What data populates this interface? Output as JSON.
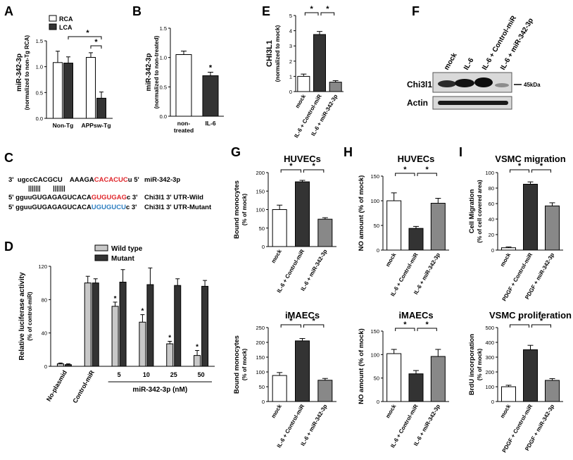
{
  "panels": {
    "A": {
      "letter": "A",
      "chart_type": "bar",
      "ylabel": "miR-342-3p",
      "ylabel_sub": "(normalized to non-Tg RCA)",
      "ylim": [
        0,
        1.5
      ],
      "yticks": [
        "0.0",
        "0.5",
        "1.0",
        "1.5"
      ],
      "ytick_values": [
        0,
        0.5,
        1.0,
        1.5
      ],
      "categories": [
        "Non-Tg",
        "APPsw-Tg"
      ],
      "series": [
        {
          "name": "RCA",
          "color": "#ffffff",
          "values": [
            1.08,
            1.18
          ],
          "errors": [
            0.22,
            0.09
          ]
        },
        {
          "name": "LCA",
          "color": "#333333",
          "values": [
            1.07,
            0.39
          ],
          "errors": [
            0.12,
            0.12
          ]
        }
      ],
      "sig": [
        "*",
        "*"
      ]
    },
    "B": {
      "letter": "B",
      "chart_type": "bar",
      "ylabel": "miR-342-3p",
      "ylabel_sub": "(normalized to non-treated)",
      "ylim": [
        0,
        1.5
      ],
      "yticks": [
        "0.0",
        "0.5",
        "1.0",
        "1.5"
      ],
      "ytick_values": [
        0,
        0.5,
        1.0,
        1.5
      ],
      "categories": [
        "non-treated",
        "IL-6"
      ],
      "category_lines": [
        [
          "non-",
          "treated"
        ],
        [
          "IL-6"
        ]
      ],
      "values": [
        1.05,
        0.69
      ],
      "errors": [
        0.06,
        0.06
      ],
      "colors": [
        "#ffffff",
        "#333333"
      ],
      "sig": [
        "*"
      ]
    },
    "E": {
      "letter": "E",
      "chart_type": "bar",
      "ylabel": "CHI3L1",
      "ylabel_sub": "(normalized to mock)",
      "ylim": [
        0,
        5
      ],
      "yticks": [
        "0",
        "1",
        "2",
        "3",
        "4",
        "5"
      ],
      "ytick_values": [
        0,
        1,
        2,
        3,
        4,
        5
      ],
      "categories": [
        "mock",
        "IL-6 + Control-miR",
        "IL-6 + miR-342-3p"
      ],
      "values": [
        1.0,
        3.75,
        0.62
      ],
      "errors": [
        0.15,
        0.2,
        0.1
      ],
      "colors": [
        "#ffffff",
        "#333333",
        "#888888"
      ],
      "sig": [
        "*",
        "*"
      ]
    },
    "F": {
      "letter": "F",
      "lane_labels": [
        "mock",
        "IL-6",
        "IL-6 + Control-miR",
        "IL-6 + miR-342-3p"
      ],
      "row_labels": [
        "Chi3l1",
        "Actin"
      ],
      "marker": "45kDa"
    },
    "C": {
      "letter": "C",
      "mirna_prefix": "3'  ugccCACGCU    AAAGA",
      "mirna_seed": "CACACUC",
      "mirna_suffix": "u 5'",
      "mirna_label": "miR-342-3p",
      "pairing": "|||||||       |||||||",
      "wild_prefix": "5' gguuGUGAGAGUCACA",
      "wild_site": "GUGUGAG",
      "wild_suffix": "c 3'",
      "wild_label": "Chi3l1 3' UTR-Wild",
      "mut_prefix": "5' gguuGUGAGAGUCACA",
      "mut_site": "UGUGUCU",
      "mut_suffix": "c 3'",
      "mut_label": "Chi3l1 3' UTR-Mutant",
      "seed_color": "#e0262b",
      "mut_color": "#2f7fc1"
    },
    "D": {
      "letter": "D",
      "chart_type": "bar",
      "ylabel": "Relative luciferase activity",
      "ylabel_sub": "(% of control-miR)",
      "ylim": [
        0,
        120
      ],
      "yticks": [
        "0",
        "40",
        "80",
        "120"
      ],
      "ytick_values": [
        0,
        40,
        80,
        120
      ],
      "categories": [
        "No-plasmid",
        "Control-miR",
        "5",
        "10",
        "25",
        "50"
      ],
      "group_label": "miR-342-3p (nM)",
      "series": [
        {
          "name": "Wild type",
          "color": "#c8c8c8",
          "values": [
            3,
            100,
            72,
            53,
            27,
            13
          ],
          "errors": [
            1,
            8,
            5,
            9,
            3,
            6
          ]
        },
        {
          "name": "Mutant",
          "color": "#333333",
          "values": [
            2,
            100,
            101,
            98,
            97,
            96
          ],
          "errors": [
            1,
            5,
            15,
            20,
            8,
            7
          ]
        }
      ],
      "sig_wild": [
        "",
        "",
        "*",
        "*",
        "*",
        "*"
      ]
    },
    "G": {
      "letter": "G",
      "top": {
        "title": "HUVECs",
        "chart_type": "bar",
        "ylabel": "Bound monocytes",
        "ylabel_sub": "(% of mock)",
        "ylim": [
          0,
          200
        ],
        "yticks": [
          "0",
          "50",
          "100",
          "150",
          "200"
        ],
        "ytick_values": [
          0,
          50,
          100,
          150,
          200
        ],
        "categories": [
          "mock",
          "IL-6 + Control-miR",
          "IL-6 + miR-342-3p"
        ],
        "values": [
          100,
          175,
          74
        ],
        "errors": [
          12,
          4,
          4
        ],
        "colors": [
          "#ffffff",
          "#333333",
          "#888888"
        ],
        "sig": [
          "*",
          "*"
        ]
      },
      "bottom": {
        "title": "iMAECs",
        "chart_type": "bar",
        "ylabel": "Bound monocytes",
        "ylabel_sub": "(% of mock)",
        "ylim": [
          0,
          250
        ],
        "yticks": [
          "0",
          "50",
          "100",
          "150",
          "200",
          "250"
        ],
        "ytick_values": [
          0,
          50,
          100,
          150,
          200,
          250
        ],
        "categories": [
          "mock",
          "IL-6 + Control-miR",
          "IL-6 + miR-342-3p"
        ],
        "values": [
          88,
          205,
          72
        ],
        "errors": [
          10,
          8,
          6
        ],
        "colors": [
          "#ffffff",
          "#333333",
          "#888888"
        ],
        "sig": [
          "*",
          "*"
        ]
      }
    },
    "H": {
      "letter": "H",
      "top": {
        "title": "HUVECs",
        "chart_type": "bar",
        "ylabel": "NO amount (% of mock)",
        "ylim": [
          0,
          150
        ],
        "yticks": [
          "0",
          "50",
          "100",
          "150"
        ],
        "ytick_values": [
          0,
          50,
          100,
          150
        ],
        "categories": [
          "mock",
          "IL-6 + Control-miR",
          "IL-6 + miR-342-3p"
        ],
        "values": [
          100,
          44,
          95
        ],
        "errors": [
          16,
          4,
          10
        ],
        "colors": [
          "#ffffff",
          "#333333",
          "#888888"
        ],
        "sig": [
          "*",
          "*"
        ]
      },
      "bottom": {
        "title": "iMAECs",
        "chart_type": "bar",
        "ylabel": "NO amount (% of mock)",
        "ylim": [
          0,
          150
        ],
        "yticks": [
          "0",
          "50",
          "100",
          "150"
        ],
        "ytick_values": [
          0,
          50,
          100,
          150
        ],
        "categories": [
          "mock",
          "IL-6 + Control-miR",
          "IL-6 + miR-342-3p"
        ],
        "values": [
          102,
          59,
          96
        ],
        "errors": [
          9,
          7,
          15
        ],
        "colors": [
          "#ffffff",
          "#333333",
          "#888888"
        ],
        "sig": [
          "*",
          "*"
        ]
      }
    },
    "I": {
      "letter": "I",
      "top": {
        "title": "VSMC migration",
        "chart_type": "bar",
        "ylabel": "Cell Migration",
        "ylabel_sub": "(% of cell covered area)",
        "ylim": [
          0,
          100
        ],
        "yticks": [
          "0",
          "20",
          "40",
          "60",
          "80",
          "100"
        ],
        "ytick_values": [
          0,
          20,
          40,
          60,
          80,
          100
        ],
        "categories": [
          "mock",
          "PDGF + Control-miR",
          "PDGF + miR-342-3p"
        ],
        "values": [
          3,
          85,
          57
        ],
        "errors": [
          1,
          3,
          4
        ],
        "colors": [
          "#ffffff",
          "#333333",
          "#888888"
        ],
        "sig": [
          "*",
          "*"
        ]
      },
      "bottom": {
        "title": "VSMC proliferation",
        "chart_type": "bar",
        "ylabel": "BrdU incorporation",
        "ylabel_sub": "(% of mock)",
        "ylim": [
          0,
          500
        ],
        "yticks": [
          "0",
          "100",
          "200",
          "300",
          "400",
          "500"
        ],
        "ytick_values": [
          0,
          100,
          200,
          300,
          400,
          500
        ],
        "categories": [
          "mock",
          "PDGF + Control-miR",
          "PDGF + miR-342-3p"
        ],
        "values": [
          100,
          350,
          143
        ],
        "errors": [
          10,
          30,
          12
        ],
        "colors": [
          "#ffffff",
          "#333333",
          "#888888"
        ],
        "sig": [
          "*",
          "*"
        ]
      }
    }
  }
}
